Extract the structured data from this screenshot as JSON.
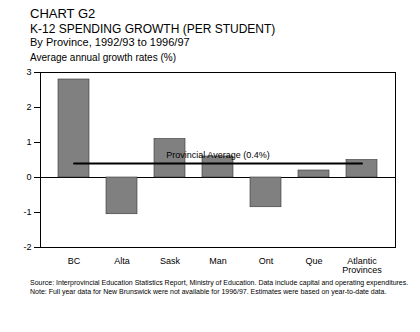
{
  "chart_data": {
    "type": "bar",
    "title": "CHART G2",
    "subtitle": "K-12 SPENDING GROWTH (PER STUDENT)",
    "subtitle2": "By Province, 1992/93 to 1996/97",
    "y_label": "Average annual growth rates (%)",
    "categories": [
      "BC",
      "Alta",
      "Sask",
      "Man",
      "Ont",
      "Que",
      "Atlantic Provinces"
    ],
    "values": [
      2.8,
      -1.05,
      1.1,
      0.6,
      -0.85,
      0.2,
      0.5
    ],
    "color": "#808080",
    "ylim": [
      -2,
      3
    ],
    "yticks": [
      -2,
      -1,
      0,
      1,
      2,
      3
    ],
    "grid": false,
    "average": {
      "value": 0.4,
      "label": "Provincial Average (0.4%)"
    },
    "source": "Source: Interprovincial Education Statistics Report, Ministry of Education. Data include capital and operating expenditures.",
    "note": "Note: Full year data for New Brunswick were not available for 1996/97. Estimates were based on year-to-date data."
  }
}
